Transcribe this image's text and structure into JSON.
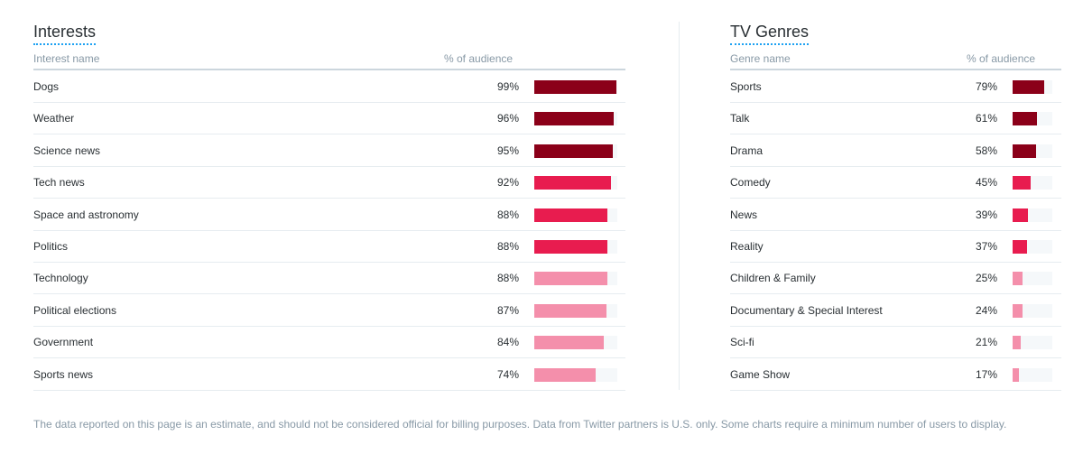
{
  "footnote": "The data reported on this page is an estimate, and should not be considered official for billing purposes. Data from Twitter partners is U.S. only. Some charts require a minimum number of users to display.",
  "colors": {
    "high": "#8b0019",
    "mid": "#e81c4f",
    "low": "#f48fab",
    "track": "#f5f8fa"
  },
  "chart_data": [
    {
      "type": "bar",
      "title": "Interests",
      "xlabel": "Interest name",
      "ylabel": "% of audience",
      "ylim": [
        0,
        100
      ],
      "categories": [
        "Dogs",
        "Weather",
        "Science news",
        "Tech news",
        "Space and astronomy",
        "Politics",
        "Technology",
        "Political elections",
        "Government",
        "Sports news"
      ],
      "values": [
        99,
        96,
        95,
        92,
        88,
        88,
        88,
        87,
        84,
        74
      ],
      "value_labels": [
        "99%",
        "96%",
        "95%",
        "92%",
        "88%",
        "88%",
        "88%",
        "87%",
        "84%",
        "74%"
      ],
      "bar_tones": [
        "high",
        "high",
        "high",
        "mid",
        "mid",
        "mid",
        "low",
        "low",
        "low",
        "low"
      ]
    },
    {
      "type": "bar",
      "title": "TV Genres",
      "xlabel": "Genre name",
      "ylabel": "% of audience",
      "ylim": [
        0,
        100
      ],
      "categories": [
        "Sports",
        "Talk",
        "Drama",
        "Comedy",
        "News",
        "Reality",
        "Children & Family",
        "Documentary & Special Interest",
        "Sci-fi",
        "Game Show"
      ],
      "values": [
        79,
        61,
        58,
        45,
        39,
        37,
        25,
        24,
        21,
        17
      ],
      "value_labels": [
        "79%",
        "61%",
        "58%",
        "45%",
        "39%",
        "37%",
        "25%",
        "24%",
        "21%",
        "17%"
      ],
      "bar_tones": [
        "high",
        "high",
        "high",
        "mid",
        "mid",
        "mid",
        "low",
        "low",
        "low",
        "low"
      ]
    }
  ]
}
